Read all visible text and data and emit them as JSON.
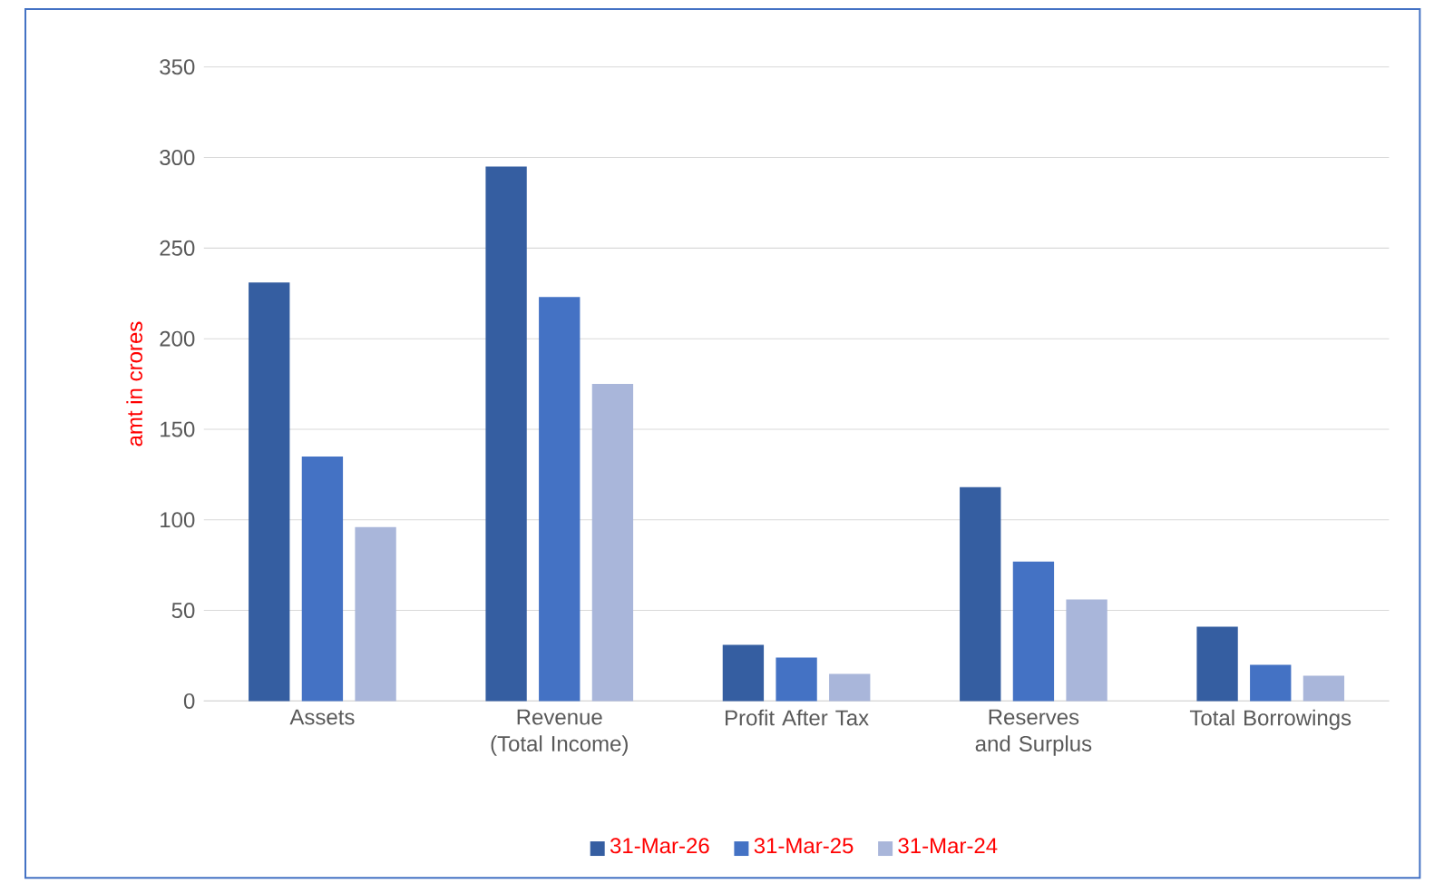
{
  "chart_data": {
    "type": "bar",
    "ylabel": "amt in crores",
    "categories": [
      "Assets",
      "Revenue (Total Income)",
      "Profit After Tax",
      "Reserves and Surplus",
      "Total Borrowings"
    ],
    "series": [
      {
        "name": "31-Mar-26",
        "color": "#355ea1",
        "values": [
          231,
          295,
          31,
          118,
          41
        ]
      },
      {
        "name": "31-Mar-25",
        "color": "#4472c4",
        "values": [
          135,
          223,
          24,
          77,
          20
        ]
      },
      {
        "name": "31-Mar-24",
        "color": "#a9b6da",
        "values": [
          96,
          175,
          15,
          56,
          14
        ]
      }
    ],
    "ylim": [
      0,
      350
    ],
    "yticks": [
      0,
      50,
      100,
      150,
      200,
      250,
      300,
      350
    ],
    "grid": "y",
    "legend": "bottom"
  }
}
